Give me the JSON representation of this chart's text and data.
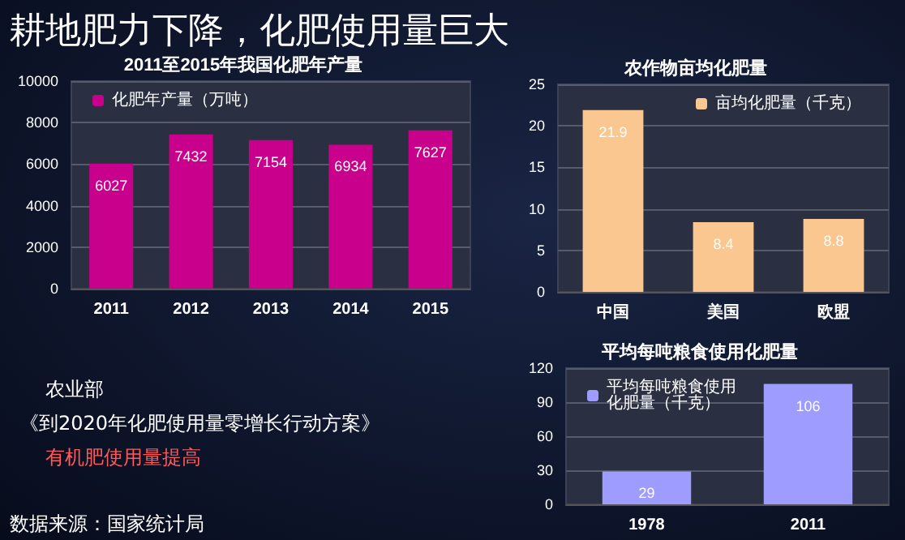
{
  "chart_data": [
    {
      "type": "other",
      "title": "耕地肥力下降，化肥使用量巨大",
      "annotations": [
        "农业部",
        "《到2020年化肥使用量零增长行动方案》",
        "有机肥使用量提高",
        "数据来源：国家统计局"
      ]
    },
    {
      "type": "bar",
      "title": "2011至2015年我国化肥年产量",
      "categories": [
        "2011",
        "2012",
        "2013",
        "2014",
        "2015"
      ],
      "series": [
        {
          "name": "化肥年产量（万吨）",
          "color": "#c8008c",
          "values": [
            6027,
            7432,
            7154,
            6934,
            7627
          ]
        }
      ],
      "ylim": [
        0,
        10000
      ],
      "yticks": [
        0,
        2000,
        4000,
        6000,
        8000,
        10000
      ],
      "grid": "y",
      "legend": "top left",
      "data_labels": true
    },
    {
      "type": "bar",
      "title": "农作物亩均化肥量",
      "categories": [
        "中国",
        "美国",
        "欧盟"
      ],
      "series": [
        {
          "name": "亩均化肥量（千克）",
          "color": "#f9c78f",
          "values": [
            21.9,
            8.4,
            8.8
          ]
        }
      ],
      "ylim": [
        0,
        25
      ],
      "yticks": [
        0,
        5,
        10,
        15,
        20,
        25
      ],
      "grid": "y",
      "legend": "top right",
      "data_labels": true
    },
    {
      "type": "bar",
      "title": "平均每吨粮食使用化肥量",
      "categories": [
        "1978",
        "2011"
      ],
      "series": [
        {
          "name": "平均每吨粮食使用化肥量（千克）",
          "color": "#9f9cff",
          "values": [
            29,
            106
          ]
        }
      ],
      "ylim": [
        0,
        120
      ],
      "yticks": [
        0,
        30,
        60,
        90,
        120
      ],
      "grid": "y",
      "legend": "top left",
      "data_labels": true
    }
  ]
}
